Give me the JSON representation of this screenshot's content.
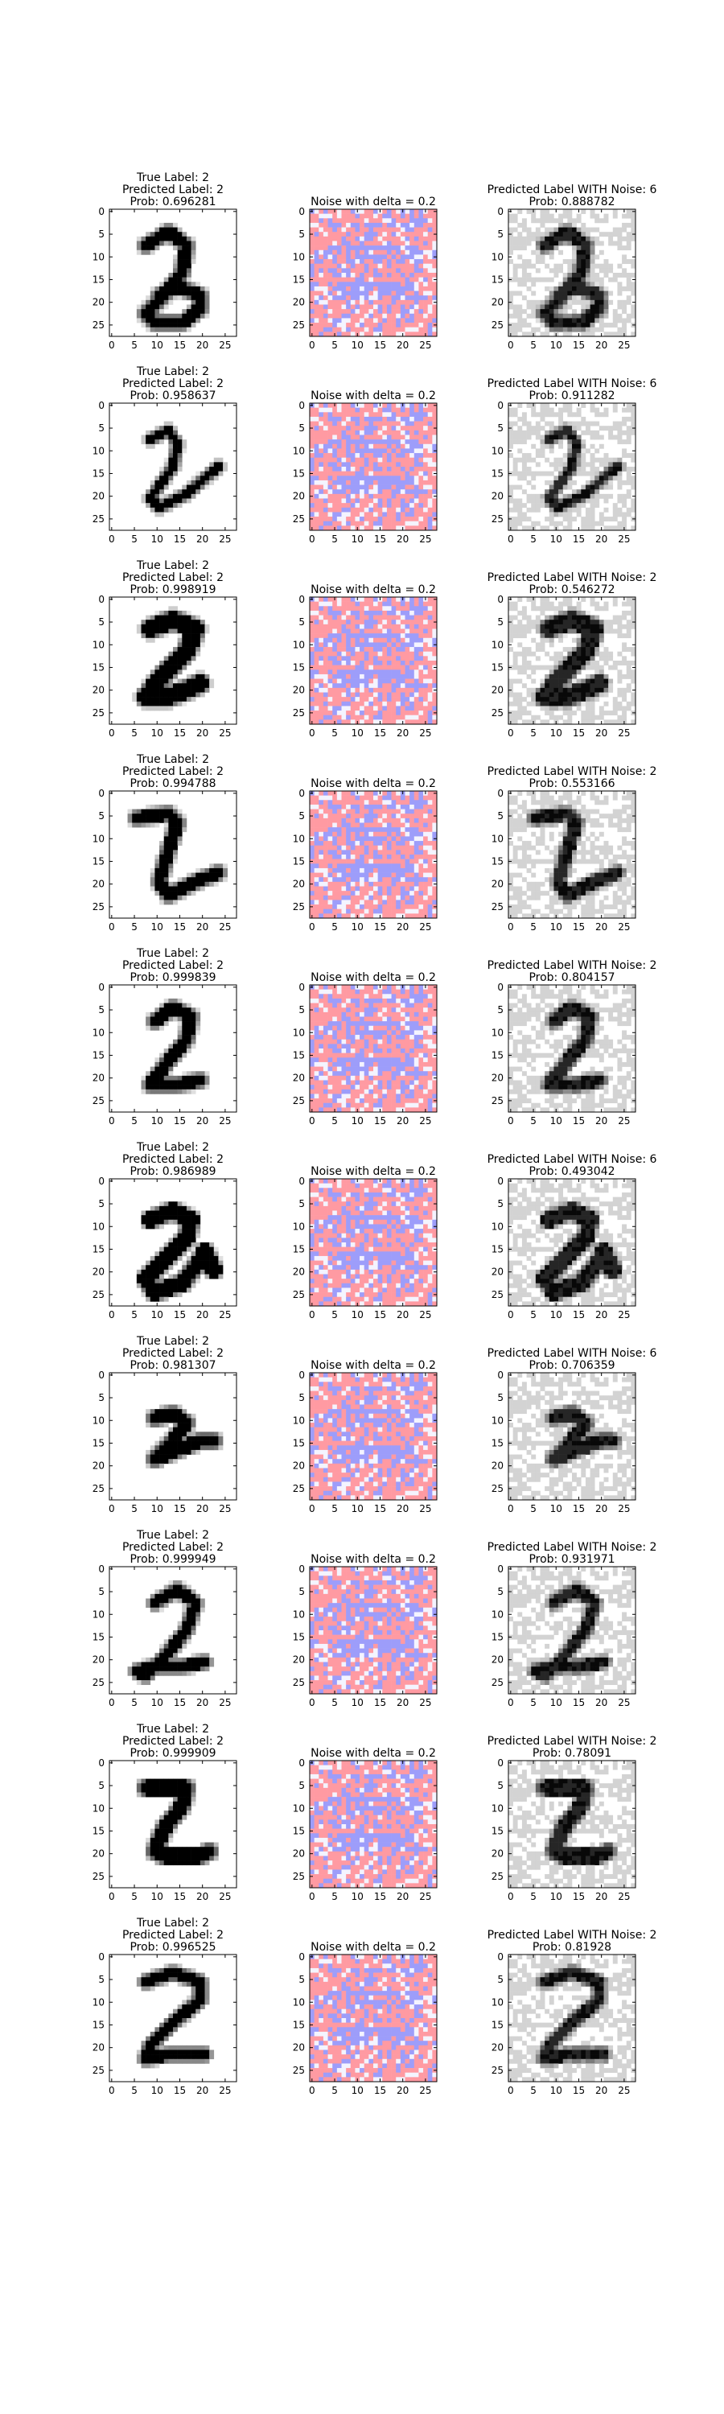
{
  "chart_data": {
    "type": "heatmap",
    "layout": {
      "rows": 10,
      "columns": [
        "original",
        "noise",
        "noisy"
      ]
    },
    "axes": {
      "xticks": [
        0,
        5,
        10,
        15,
        20,
        25
      ],
      "yticks": [
        0,
        5,
        10,
        15,
        20,
        25
      ],
      "xlim": [
        -0.5,
        27.5
      ],
      "ylim": [
        27.5,
        -0.5
      ],
      "grid": false
    },
    "colors": {
      "noise_positive": "#ff9aa2",
      "noise_negative": "#9d9dfa",
      "noise_neutral": "#f4f4ff",
      "digit": "#000000",
      "noisy_background": "#d3d3d3"
    },
    "delta": 0.2,
    "rows": [
      {
        "digit_style": "loop",
        "true_label": "True Label: 2",
        "pred_label": "Predicted Label: 2",
        "prob": "Prob: 0.696281",
        "noise_title": "Noise with delta = 0.2",
        "noisy_pred": "Predicted Label WITH Noise: 6",
        "noisy_prob": "Prob: 0.888782"
      },
      {
        "digit_style": "thin",
        "true_label": "True Label: 2",
        "pred_label": "Predicted Label: 2",
        "prob": "Prob: 0.958637",
        "noise_title": "Noise with delta = 0.2",
        "noisy_pred": "Predicted Label WITH Noise: 6",
        "noisy_prob": "Prob: 0.911282"
      },
      {
        "digit_style": "bold",
        "true_label": "True Label: 2",
        "pred_label": "Predicted Label: 2",
        "prob": "Prob: 0.998919",
        "noise_title": "Noise with delta = 0.2",
        "noisy_pred": "Predicted Label WITH Noise: 2",
        "noisy_prob": "Prob: 0.546272"
      },
      {
        "digit_style": "zee",
        "true_label": "True Label: 2",
        "pred_label": "Predicted Label: 2",
        "prob": "Prob: 0.994788",
        "noise_title": "Noise with delta = 0.2",
        "noisy_pred": "Predicted Label WITH Noise: 2",
        "noisy_prob": "Prob: 0.553166"
      },
      {
        "digit_style": "classic",
        "true_label": "True Label: 2",
        "pred_label": "Predicted Label: 2",
        "prob": "Prob: 0.999839",
        "noise_title": "Noise with delta = 0.2",
        "noisy_pred": "Predicted Label WITH Noise: 2",
        "noisy_prob": "Prob: 0.804157"
      },
      {
        "digit_style": "curly",
        "true_label": "True Label: 2",
        "pred_label": "Predicted Label: 2",
        "prob": "Prob: 0.986989",
        "noise_title": "Noise with delta = 0.2",
        "noisy_pred": "Predicted Label WITH Noise: 6",
        "noisy_prob": "Prob: 0.493042"
      },
      {
        "digit_style": "small",
        "true_label": "True Label: 2",
        "pred_label": "Predicted Label: 2",
        "prob": "Prob: 0.981307",
        "noise_title": "Noise with delta = 0.2",
        "noisy_pred": "Predicted Label WITH Noise: 6",
        "noisy_prob": "Prob: 0.706359"
      },
      {
        "digit_style": "looped",
        "true_label": "True Label: 2",
        "pred_label": "Predicted Label: 2",
        "prob": "Prob: 0.999949",
        "noise_title": "Noise with delta = 0.2",
        "noisy_pred": "Predicted Label WITH Noise: 2",
        "noisy_prob": "Prob: 0.931971"
      },
      {
        "digit_style": "block",
        "true_label": "True Label: 2",
        "pred_label": "Predicted Label: 2",
        "prob": "Prob: 0.999909",
        "noise_title": "Noise with delta = 0.2",
        "noisy_pred": "Predicted Label WITH Noise: 2",
        "noisy_prob": "Prob: 0.78091"
      },
      {
        "digit_style": "wide",
        "true_label": "True Label: 2",
        "pred_label": "Predicted Label: 2",
        "prob": "Prob: 0.996525",
        "noise_title": "Noise with delta = 0.2",
        "noisy_pred": "Predicted Label WITH Noise: 2",
        "noisy_prob": "Prob: 0.81928"
      }
    ]
  }
}
